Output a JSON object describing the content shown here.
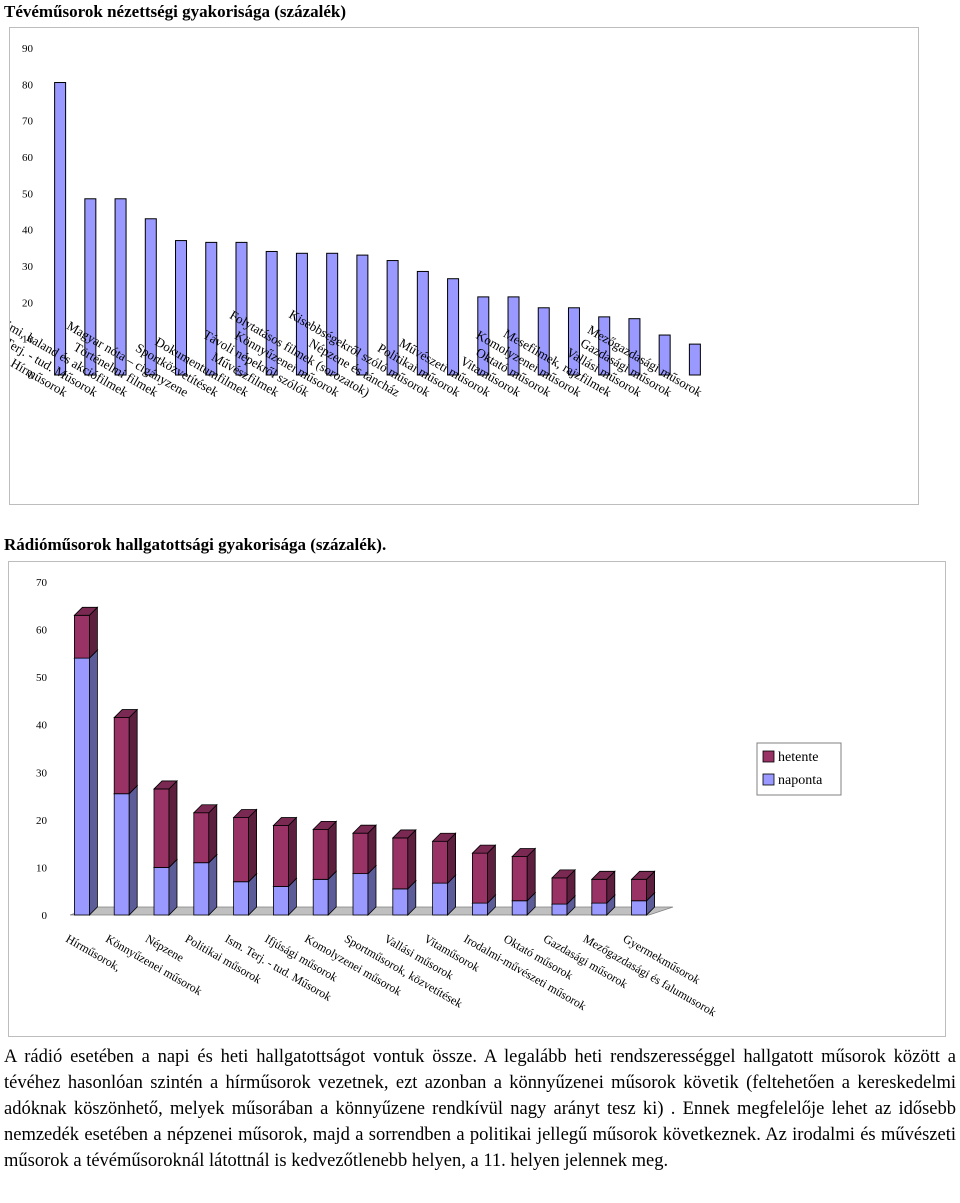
{
  "tv_title": "Tévéműsorok nézettségi gyakorisága (százalék)",
  "radio_title": "Rádióműsorok hallgatottsági gyakorisága (százalék).",
  "colors": {
    "tv_bar": "#9999ff",
    "naponta": "#9999ff",
    "hetente": "#993366",
    "floor": "#c0c0c0"
  },
  "chart_data": [
    {
      "type": "bar",
      "title": "Tévéműsorok nézettségi gyakorisága (százalék)",
      "categories": [
        "Hírműsorok",
        "Ism. Terj. - tud. Műsorok",
        "Krimi, kaland és akciófilmek",
        "Történelmi filmek",
        "Magyar nóta – cigányzene",
        "Sportközvetítések",
        "Dokumentumfilmek",
        "Művészfilmek",
        "Távoli népekről szólók",
        "Könnyűzenei műsorok",
        "Folytatásos filmek (sorozatok)",
        "Népzene és táncház",
        "Kisebbségekről szóló műsorok",
        "Politikai műsorok",
        "Művészeti műsorok",
        "Vitaműsorok",
        "Oktató műsorok",
        "Komolyzenei műsorok",
        "Mesefilmek, rajzfilmek",
        "Vallási műsorok",
        "Gazdasági műsorok",
        "Mezőgazdasági műsorok"
      ],
      "values": [
        80.5,
        48.5,
        48.5,
        43,
        37,
        36.5,
        36.5,
        34,
        33.5,
        33.5,
        33,
        31.5,
        28.5,
        26.5,
        21.5,
        21.5,
        18.5,
        18.5,
        16,
        15.5,
        11,
        8.5
      ],
      "ylim": [
        0,
        90
      ],
      "yticks": [
        0,
        10,
        20,
        30,
        40,
        50,
        60,
        70,
        80,
        90
      ],
      "grid": false
    },
    {
      "type": "bar",
      "stacked": true,
      "three_d": true,
      "title": "Rádióműsorok hallgatottsági gyakorisága (százalék).",
      "categories": [
        "Hírműsorok,",
        "Könnyűzenei műsorok",
        "Népzene",
        "Politikai műsorok",
        "Ism. Terj. - tud. Műsorok",
        "Ifjúsági műsorok",
        "Komolyzenei műsorok",
        "Sportműsorok, közvetítések",
        "Vallási műsorok",
        "Vitaműsorok",
        "Irodalmi-művészeti műsorok",
        "Oktató műsorok",
        "Gazdasági műsorok",
        "Mezőgazdasági és falumusorok",
        "Gyermekműsorok"
      ],
      "series": [
        {
          "name": "naponta",
          "values": [
            54,
            25.5,
            10,
            11,
            7,
            6,
            7.5,
            8.7,
            5.5,
            6.7,
            2.5,
            3,
            2.3,
            2.5,
            3
          ]
        },
        {
          "name": "hetente",
          "values": [
            9,
            16,
            16.5,
            10.5,
            13.5,
            12.8,
            10.5,
            8.5,
            10.7,
            8.8,
            10.5,
            9.3,
            5.5,
            5,
            4.5
          ]
        }
      ],
      "ylim": [
        0,
        70
      ],
      "yticks": [
        0,
        10,
        20,
        30,
        40,
        50,
        60,
        70
      ],
      "legend": {
        "position": "right",
        "entries": [
          "hetente",
          "naponta"
        ]
      },
      "grid": false
    }
  ],
  "paragraph": "A rádió esetében a napi és heti hallgatottságot vontuk össze. A legalább heti rendszerességgel hallgatott műsorok között a tévéhez hasonlóan szintén a hírműsorok vezetnek, ezt azonban a könnyűzenei műsorok követik (feltehetően a kereskedelmi adóknak köszönhető, melyek műsorában a könnyűzene rendkívül nagy arányt tesz ki) . Ennek megfelelője lehet az idősebb nemzedék esetében a népzenei műsorok, majd a sorrendben a politikai jellegű műsorok következnek. Az irodalmi és művészeti műsorok a tévéműsoroknál látottnál is kedvezőtlenebb helyen, a 11. helyen jelennek meg."
}
